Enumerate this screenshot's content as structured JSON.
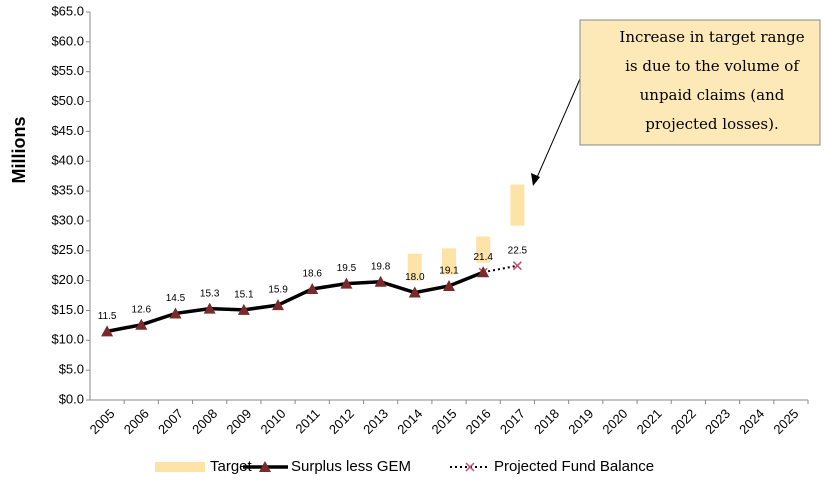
{
  "chart_data": {
    "type": "line",
    "ylabel": "Millions",
    "categories": [
      "2005",
      "2006",
      "2007",
      "2008",
      "2009",
      "2010",
      "2011",
      "2012",
      "2013",
      "2014",
      "2015",
      "2016",
      "2017",
      "2018",
      "2019",
      "2020",
      "2021",
      "2022",
      "2023",
      "2024",
      "2025"
    ],
    "ylim": [
      0,
      65
    ],
    "yticks": [
      {
        "value": 0,
        "label": "$0.0"
      },
      {
        "value": 5,
        "label": "$5.0"
      },
      {
        "value": 10,
        "label": "$10.0"
      },
      {
        "value": 15,
        "label": "$15.0"
      },
      {
        "value": 20,
        "label": "$20.0"
      },
      {
        "value": 25,
        "label": "$25.0"
      },
      {
        "value": 30,
        "label": "$30.0"
      },
      {
        "value": 35,
        "label": "$35.0"
      },
      {
        "value": 40,
        "label": "$40.0"
      },
      {
        "value": 45,
        "label": "$45.0"
      },
      {
        "value": 50,
        "label": "$50.0"
      },
      {
        "value": 55,
        "label": "$55.0"
      },
      {
        "value": 60,
        "label": "$60.0"
      },
      {
        "value": 65,
        "label": "$65.0"
      }
    ],
    "target": {
      "name": "Target",
      "color": "#fde3a7",
      "low": [
        null,
        null,
        null,
        null,
        null,
        null,
        null,
        null,
        null,
        20,
        21,
        23,
        29.2,
        null,
        null,
        null,
        null,
        null,
        null,
        null,
        null
      ],
      "high": [
        null,
        null,
        null,
        null,
        null,
        null,
        null,
        null,
        null,
        24.5,
        25.4,
        27.4,
        36.1,
        null,
        null,
        null,
        null,
        null,
        null,
        null,
        null
      ]
    },
    "series": [
      {
        "name": "Surplus less GEM",
        "color": "#000000",
        "marker_color": "#7a2a2a",
        "values": [
          11.5,
          12.6,
          14.5,
          15.3,
          15.1,
          15.9,
          18.6,
          19.5,
          19.8,
          18.0,
          19.1,
          21.4,
          null,
          null,
          null,
          null,
          null,
          null,
          null,
          null,
          null
        ],
        "value_labels": [
          "11.5",
          "12.6",
          "14.5",
          "15.3",
          "15.1",
          "15.9",
          "18.6",
          "19.5",
          "19.8",
          "18.0",
          "19.1",
          "21.4",
          null,
          null,
          null,
          null,
          null,
          null,
          null,
          null,
          null
        ]
      },
      {
        "name": "Projected Fund Balance",
        "color": "#000000",
        "marker_color": "#c0506e",
        "values": [
          null,
          null,
          null,
          null,
          null,
          null,
          null,
          null,
          null,
          null,
          null,
          21.4,
          22.5,
          null,
          null,
          null,
          null,
          null,
          null,
          null,
          null
        ],
        "value_labels": [
          null,
          null,
          null,
          null,
          null,
          null,
          null,
          null,
          null,
          null,
          null,
          null,
          "22.5",
          null,
          null,
          null,
          null,
          null,
          null,
          null,
          null
        ]
      }
    ],
    "annotation": [
      "Increase in target range",
      "is due to the volume  of",
      "unpaid claims (and",
      "projected losses)."
    ]
  }
}
